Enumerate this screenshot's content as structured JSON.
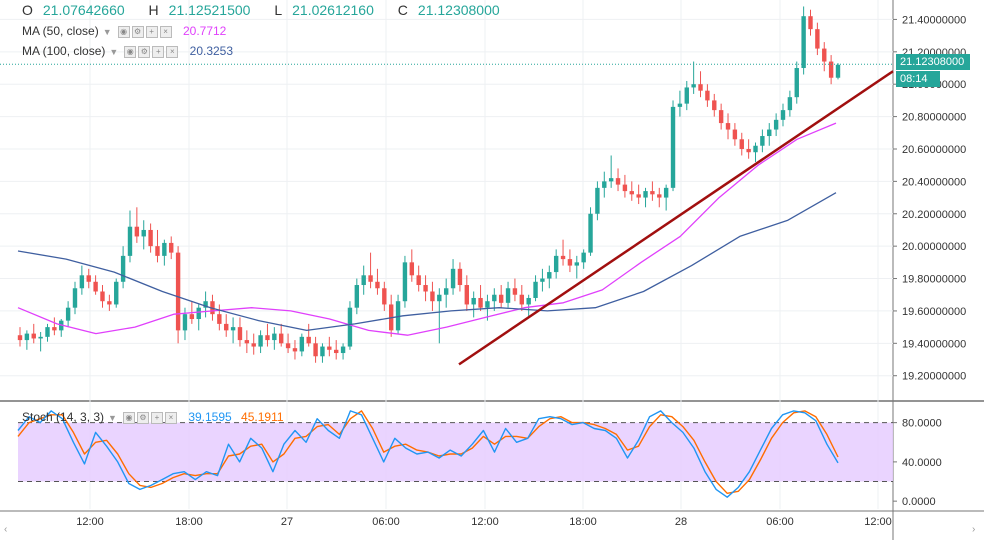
{
  "ohlc": {
    "open_label": "O",
    "open": "21.07642660",
    "high_label": "H",
    "high": "21.12521500",
    "low_label": "L",
    "low": "21.02612160",
    "close_label": "C",
    "close": "21.12308000"
  },
  "indicators": {
    "ma50": {
      "label": "MA (50, close)",
      "value": "20.7712",
      "color": "#e040fb"
    },
    "ma100": {
      "label": "MA (100, close)",
      "value": "20.3253",
      "color": "#3f5fa0"
    },
    "stoch": {
      "label": "Stoch (14, 3, 3)",
      "k_value": "39.1595",
      "d_value": "45.1911",
      "k_color": "#2196f3",
      "d_color": "#ff6d00"
    }
  },
  "price_scale": {
    "last_price": "21.12308000",
    "countdown": "08:14",
    "ticks": [
      "21.40000000",
      "21.20000000",
      "21.00000000",
      "20.80000000",
      "20.60000000",
      "20.40000000",
      "20.20000000",
      "20.00000000",
      "19.80000000",
      "19.60000000",
      "19.40000000",
      "19.20000000"
    ]
  },
  "stoch_scale": {
    "ticks": [
      "80.0000",
      "40.0000",
      "0.0000"
    ]
  },
  "time_axis": {
    "ticks": [
      "12:00",
      "18:00",
      "27",
      "06:00",
      "12:00",
      "18:00",
      "28",
      "06:00",
      "12:00"
    ]
  },
  "chart_data": {
    "type": "candlestick",
    "ylim": [
      19.05,
      21.52
    ],
    "up_color": "#26a69a",
    "down_color": "#ef5350",
    "candles": [
      [
        19.45,
        19.5,
        19.38,
        19.42
      ],
      [
        19.42,
        19.48,
        19.36,
        19.46
      ],
      [
        19.46,
        19.52,
        19.4,
        19.43
      ],
      [
        19.43,
        19.47,
        19.35,
        19.44
      ],
      [
        19.44,
        19.52,
        19.41,
        19.5
      ],
      [
        19.5,
        19.56,
        19.45,
        19.48
      ],
      [
        19.48,
        19.55,
        19.44,
        19.54
      ],
      [
        19.54,
        19.66,
        19.5,
        19.62
      ],
      [
        19.62,
        19.78,
        19.58,
        19.74
      ],
      [
        19.74,
        19.88,
        19.7,
        19.82
      ],
      [
        19.82,
        19.86,
        19.74,
        19.78
      ],
      [
        19.78,
        19.82,
        19.7,
        19.72
      ],
      [
        19.72,
        19.76,
        19.62,
        19.66
      ],
      [
        19.66,
        19.7,
        19.6,
        19.64
      ],
      [
        19.64,
        19.8,
        19.62,
        19.78
      ],
      [
        19.78,
        20.0,
        19.74,
        19.94
      ],
      [
        19.94,
        20.22,
        19.9,
        20.12
      ],
      [
        20.12,
        20.24,
        20.02,
        20.06
      ],
      [
        20.06,
        20.16,
        19.98,
        20.1
      ],
      [
        20.1,
        20.14,
        19.96,
        20.0
      ],
      [
        20.0,
        20.1,
        19.9,
        19.94
      ],
      [
        19.94,
        20.04,
        19.88,
        20.02
      ],
      [
        20.02,
        20.06,
        19.92,
        19.96
      ],
      [
        19.96,
        20.0,
        19.4,
        19.48
      ],
      [
        19.48,
        19.62,
        19.42,
        19.58
      ],
      [
        19.58,
        19.66,
        19.52,
        19.55
      ],
      [
        19.55,
        19.64,
        19.48,
        19.62
      ],
      [
        19.62,
        19.72,
        19.56,
        19.66
      ],
      [
        19.66,
        19.7,
        19.54,
        19.58
      ],
      [
        19.58,
        19.64,
        19.48,
        19.52
      ],
      [
        19.52,
        19.58,
        19.44,
        19.48
      ],
      [
        19.48,
        19.56,
        19.4,
        19.5
      ],
      [
        19.5,
        19.56,
        19.38,
        19.42
      ],
      [
        19.42,
        19.48,
        19.34,
        19.4
      ],
      [
        19.4,
        19.46,
        19.33,
        19.38
      ],
      [
        19.38,
        19.48,
        19.34,
        19.45
      ],
      [
        19.45,
        19.52,
        19.38,
        19.42
      ],
      [
        19.42,
        19.5,
        19.36,
        19.46
      ],
      [
        19.46,
        19.52,
        19.38,
        19.4
      ],
      [
        19.4,
        19.46,
        19.34,
        19.37
      ],
      [
        19.37,
        19.42,
        19.3,
        19.35
      ],
      [
        19.35,
        19.46,
        19.32,
        19.44
      ],
      [
        19.44,
        19.52,
        19.38,
        19.4
      ],
      [
        19.4,
        19.44,
        19.28,
        19.32
      ],
      [
        19.32,
        19.4,
        19.28,
        19.38
      ],
      [
        19.38,
        19.44,
        19.32,
        19.36
      ],
      [
        19.36,
        19.42,
        19.3,
        19.34
      ],
      [
        19.34,
        19.4,
        19.3,
        19.38
      ],
      [
        19.38,
        19.66,
        19.36,
        19.62
      ],
      [
        19.62,
        19.8,
        19.58,
        19.76
      ],
      [
        19.76,
        19.88,
        19.7,
        19.82
      ],
      [
        19.82,
        19.96,
        19.74,
        19.78
      ],
      [
        19.78,
        19.86,
        19.7,
        19.74
      ],
      [
        19.74,
        19.78,
        19.6,
        19.64
      ],
      [
        19.64,
        19.7,
        19.44,
        19.48
      ],
      [
        19.48,
        19.7,
        19.46,
        19.66
      ],
      [
        19.66,
        19.94,
        19.62,
        19.9
      ],
      [
        19.9,
        19.98,
        19.78,
        19.82
      ],
      [
        19.82,
        19.88,
        19.72,
        19.76
      ],
      [
        19.76,
        19.82,
        19.66,
        19.72
      ],
      [
        19.72,
        19.78,
        19.6,
        19.66
      ],
      [
        19.66,
        19.74,
        19.4,
        19.7
      ],
      [
        19.7,
        19.8,
        19.62,
        19.74
      ],
      [
        19.74,
        19.92,
        19.7,
        19.86
      ],
      [
        19.86,
        19.9,
        19.72,
        19.76
      ],
      [
        19.76,
        19.82,
        19.6,
        19.64
      ],
      [
        19.64,
        19.72,
        19.56,
        19.68
      ],
      [
        19.68,
        19.76,
        19.6,
        19.62
      ],
      [
        19.62,
        19.7,
        19.54,
        19.66
      ],
      [
        19.66,
        19.74,
        19.6,
        19.7
      ],
      [
        19.7,
        19.76,
        19.62,
        19.65
      ],
      [
        19.65,
        19.78,
        19.62,
        19.74
      ],
      [
        19.74,
        19.8,
        19.66,
        19.7
      ],
      [
        19.7,
        19.76,
        19.6,
        19.64
      ],
      [
        19.64,
        19.7,
        19.56,
        19.68
      ],
      [
        19.68,
        19.82,
        19.66,
        19.78
      ],
      [
        19.78,
        19.86,
        19.72,
        19.8
      ],
      [
        19.8,
        19.88,
        19.74,
        19.84
      ],
      [
        19.84,
        19.98,
        19.8,
        19.94
      ],
      [
        19.94,
        20.04,
        19.88,
        19.92
      ],
      [
        19.92,
        19.98,
        19.84,
        19.88
      ],
      [
        19.88,
        19.94,
        19.8,
        19.9
      ],
      [
        19.9,
        19.98,
        19.86,
        19.96
      ],
      [
        19.96,
        20.24,
        19.94,
        20.2
      ],
      [
        20.2,
        20.4,
        20.16,
        20.36
      ],
      [
        20.36,
        20.46,
        20.3,
        20.4
      ],
      [
        20.4,
        20.56,
        20.36,
        20.42
      ],
      [
        20.42,
        20.48,
        20.34,
        20.38
      ],
      [
        20.38,
        20.44,
        20.3,
        20.34
      ],
      [
        20.34,
        20.4,
        20.28,
        20.32
      ],
      [
        20.32,
        20.38,
        20.26,
        20.3
      ],
      [
        20.3,
        20.36,
        20.24,
        20.34
      ],
      [
        20.34,
        20.4,
        20.28,
        20.32
      ],
      [
        20.32,
        20.36,
        20.24,
        20.3
      ],
      [
        20.3,
        20.38,
        20.22,
        20.36
      ],
      [
        20.36,
        20.9,
        20.34,
        20.86
      ],
      [
        20.86,
        20.96,
        20.8,
        20.88
      ],
      [
        20.88,
        21.02,
        20.84,
        20.98
      ],
      [
        20.98,
        21.14,
        20.94,
        21.0
      ],
      [
        21.0,
        21.08,
        20.92,
        20.96
      ],
      [
        20.96,
        21.0,
        20.86,
        20.9
      ],
      [
        20.9,
        20.94,
        20.8,
        20.84
      ],
      [
        20.84,
        20.88,
        20.72,
        20.76
      ],
      [
        20.76,
        20.82,
        20.66,
        20.72
      ],
      [
        20.72,
        20.76,
        20.62,
        20.66
      ],
      [
        20.66,
        20.7,
        20.56,
        20.6
      ],
      [
        20.6,
        20.66,
        20.54,
        20.58
      ],
      [
        20.58,
        20.64,
        20.52,
        20.62
      ],
      [
        20.62,
        20.72,
        20.58,
        20.68
      ],
      [
        20.68,
        20.76,
        20.62,
        20.72
      ],
      [
        20.72,
        20.82,
        20.68,
        20.78
      ],
      [
        20.78,
        20.88,
        20.74,
        20.84
      ],
      [
        20.84,
        20.96,
        20.8,
        20.92
      ],
      [
        20.92,
        21.14,
        20.88,
        21.1
      ],
      [
        21.1,
        21.48,
        21.06,
        21.42
      ],
      [
        21.42,
        21.46,
        21.3,
        21.34
      ],
      [
        21.34,
        21.38,
        21.18,
        21.22
      ],
      [
        21.22,
        21.26,
        21.08,
        21.14
      ],
      [
        21.14,
        21.18,
        21.0,
        21.04
      ],
      [
        21.04,
        21.13,
        21.03,
        21.12
      ]
    ],
    "ma50": [
      [
        0,
        19.62
      ],
      [
        10,
        19.52
      ],
      [
        20,
        19.46
      ],
      [
        30,
        19.5
      ],
      [
        40,
        19.58
      ],
      [
        50,
        19.6
      ],
      [
        60,
        19.62
      ],
      [
        70,
        19.6
      ],
      [
        80,
        19.55
      ],
      [
        90,
        19.48
      ],
      [
        100,
        19.45
      ],
      [
        110,
        19.5
      ],
      [
        120,
        19.56
      ],
      [
        130,
        19.62
      ],
      [
        140,
        19.65
      ],
      [
        150,
        19.73
      ],
      [
        160,
        19.9
      ],
      [
        170,
        20.06
      ],
      [
        180,
        20.3
      ],
      [
        190,
        20.5
      ],
      [
        200,
        20.66
      ],
      [
        210,
        20.76
      ]
    ],
    "ma100": [
      [
        0,
        19.97
      ],
      [
        10,
        19.92
      ],
      [
        20,
        19.84
      ],
      [
        30,
        19.72
      ],
      [
        40,
        19.62
      ],
      [
        50,
        19.54
      ],
      [
        60,
        19.48
      ],
      [
        70,
        19.52
      ],
      [
        80,
        19.57
      ],
      [
        90,
        19.6
      ],
      [
        100,
        19.62
      ],
      [
        110,
        19.6
      ],
      [
        120,
        19.62
      ],
      [
        130,
        19.72
      ],
      [
        140,
        19.88
      ],
      [
        150,
        20.06
      ],
      [
        160,
        20.16
      ],
      [
        170,
        20.33
      ]
    ],
    "trendline": {
      "start_price": 19.27,
      "end_price": 21.08
    },
    "stoch_ylim": [
      -8,
      100
    ],
    "stoch_bands": [
      80,
      20
    ],
    "stoch_k": [
      [
        0,
        72
      ],
      [
        8,
        86
      ],
      [
        16,
        80
      ],
      [
        24,
        92
      ],
      [
        32,
        84
      ],
      [
        40,
        60
      ],
      [
        48,
        38
      ],
      [
        56,
        70
      ],
      [
        64,
        56
      ],
      [
        72,
        40
      ],
      [
        80,
        18
      ],
      [
        88,
        12
      ],
      [
        96,
        16
      ],
      [
        104,
        22
      ],
      [
        112,
        28
      ],
      [
        120,
        30
      ],
      [
        128,
        22
      ],
      [
        136,
        30
      ],
      [
        144,
        26
      ],
      [
        152,
        58
      ],
      [
        160,
        40
      ],
      [
        168,
        64
      ],
      [
        176,
        54
      ],
      [
        184,
        30
      ],
      [
        192,
        58
      ],
      [
        200,
        72
      ],
      [
        208,
        60
      ],
      [
        216,
        84
      ],
      [
        224,
        72
      ],
      [
        232,
        64
      ],
      [
        240,
        92
      ],
      [
        248,
        88
      ],
      [
        256,
        64
      ],
      [
        264,
        40
      ],
      [
        272,
        64
      ],
      [
        280,
        54
      ],
      [
        288,
        48
      ],
      [
        296,
        50
      ],
      [
        304,
        44
      ],
      [
        312,
        52
      ],
      [
        320,
        46
      ],
      [
        328,
        58
      ],
      [
        336,
        72
      ],
      [
        344,
        50
      ],
      [
        352,
        74
      ],
      [
        360,
        60
      ],
      [
        368,
        64
      ],
      [
        376,
        84
      ],
      [
        384,
        86
      ],
      [
        392,
        84
      ],
      [
        400,
        78
      ],
      [
        408,
        80
      ],
      [
        416,
        74
      ],
      [
        424,
        72
      ],
      [
        432,
        64
      ],
      [
        440,
        44
      ],
      [
        448,
        62
      ],
      [
        456,
        86
      ],
      [
        464,
        92
      ],
      [
        472,
        80
      ],
      [
        480,
        70
      ],
      [
        488,
        54
      ],
      [
        496,
        30
      ],
      [
        504,
        12
      ],
      [
        512,
        4
      ],
      [
        520,
        14
      ],
      [
        528,
        30
      ],
      [
        536,
        52
      ],
      [
        544,
        74
      ],
      [
        552,
        88
      ],
      [
        560,
        92
      ],
      [
        568,
        90
      ],
      [
        576,
        82
      ],
      [
        584,
        58
      ],
      [
        592,
        39
      ]
    ],
    "stoch_d": [
      [
        0,
        66
      ],
      [
        8,
        80
      ],
      [
        16,
        84
      ],
      [
        24,
        88
      ],
      [
        32,
        88
      ],
      [
        40,
        70
      ],
      [
        48,
        48
      ],
      [
        56,
        60
      ],
      [
        64,
        62
      ],
      [
        72,
        48
      ],
      [
        80,
        28
      ],
      [
        88,
        16
      ],
      [
        96,
        14
      ],
      [
        104,
        18
      ],
      [
        112,
        24
      ],
      [
        120,
        28
      ],
      [
        128,
        26
      ],
      [
        136,
        28
      ],
      [
        144,
        28
      ],
      [
        152,
        46
      ],
      [
        160,
        48
      ],
      [
        168,
        56
      ],
      [
        176,
        58
      ],
      [
        184,
        40
      ],
      [
        192,
        48
      ],
      [
        200,
        64
      ],
      [
        208,
        66
      ],
      [
        216,
        76
      ],
      [
        224,
        78
      ],
      [
        232,
        68
      ],
      [
        240,
        84
      ],
      [
        248,
        92
      ],
      [
        256,
        74
      ],
      [
        264,
        50
      ],
      [
        272,
        56
      ],
      [
        280,
        58
      ],
      [
        288,
        52
      ],
      [
        296,
        50
      ],
      [
        304,
        46
      ],
      [
        312,
        48
      ],
      [
        320,
        48
      ],
      [
        328,
        54
      ],
      [
        336,
        66
      ],
      [
        344,
        58
      ],
      [
        352,
        66
      ],
      [
        360,
        66
      ],
      [
        368,
        64
      ],
      [
        376,
        76
      ],
      [
        384,
        84
      ],
      [
        392,
        86
      ],
      [
        400,
        80
      ],
      [
        408,
        80
      ],
      [
        416,
        78
      ],
      [
        424,
        74
      ],
      [
        432,
        68
      ],
      [
        440,
        52
      ],
      [
        448,
        56
      ],
      [
        456,
        76
      ],
      [
        464,
        88
      ],
      [
        472,
        86
      ],
      [
        480,
        76
      ],
      [
        488,
        62
      ],
      [
        496,
        40
      ],
      [
        504,
        20
      ],
      [
        512,
        8
      ],
      [
        520,
        10
      ],
      [
        528,
        22
      ],
      [
        536,
        42
      ],
      [
        544,
        64
      ],
      [
        552,
        80
      ],
      [
        560,
        90
      ],
      [
        568,
        92
      ],
      [
        576,
        86
      ],
      [
        584,
        68
      ],
      [
        592,
        45
      ]
    ]
  }
}
